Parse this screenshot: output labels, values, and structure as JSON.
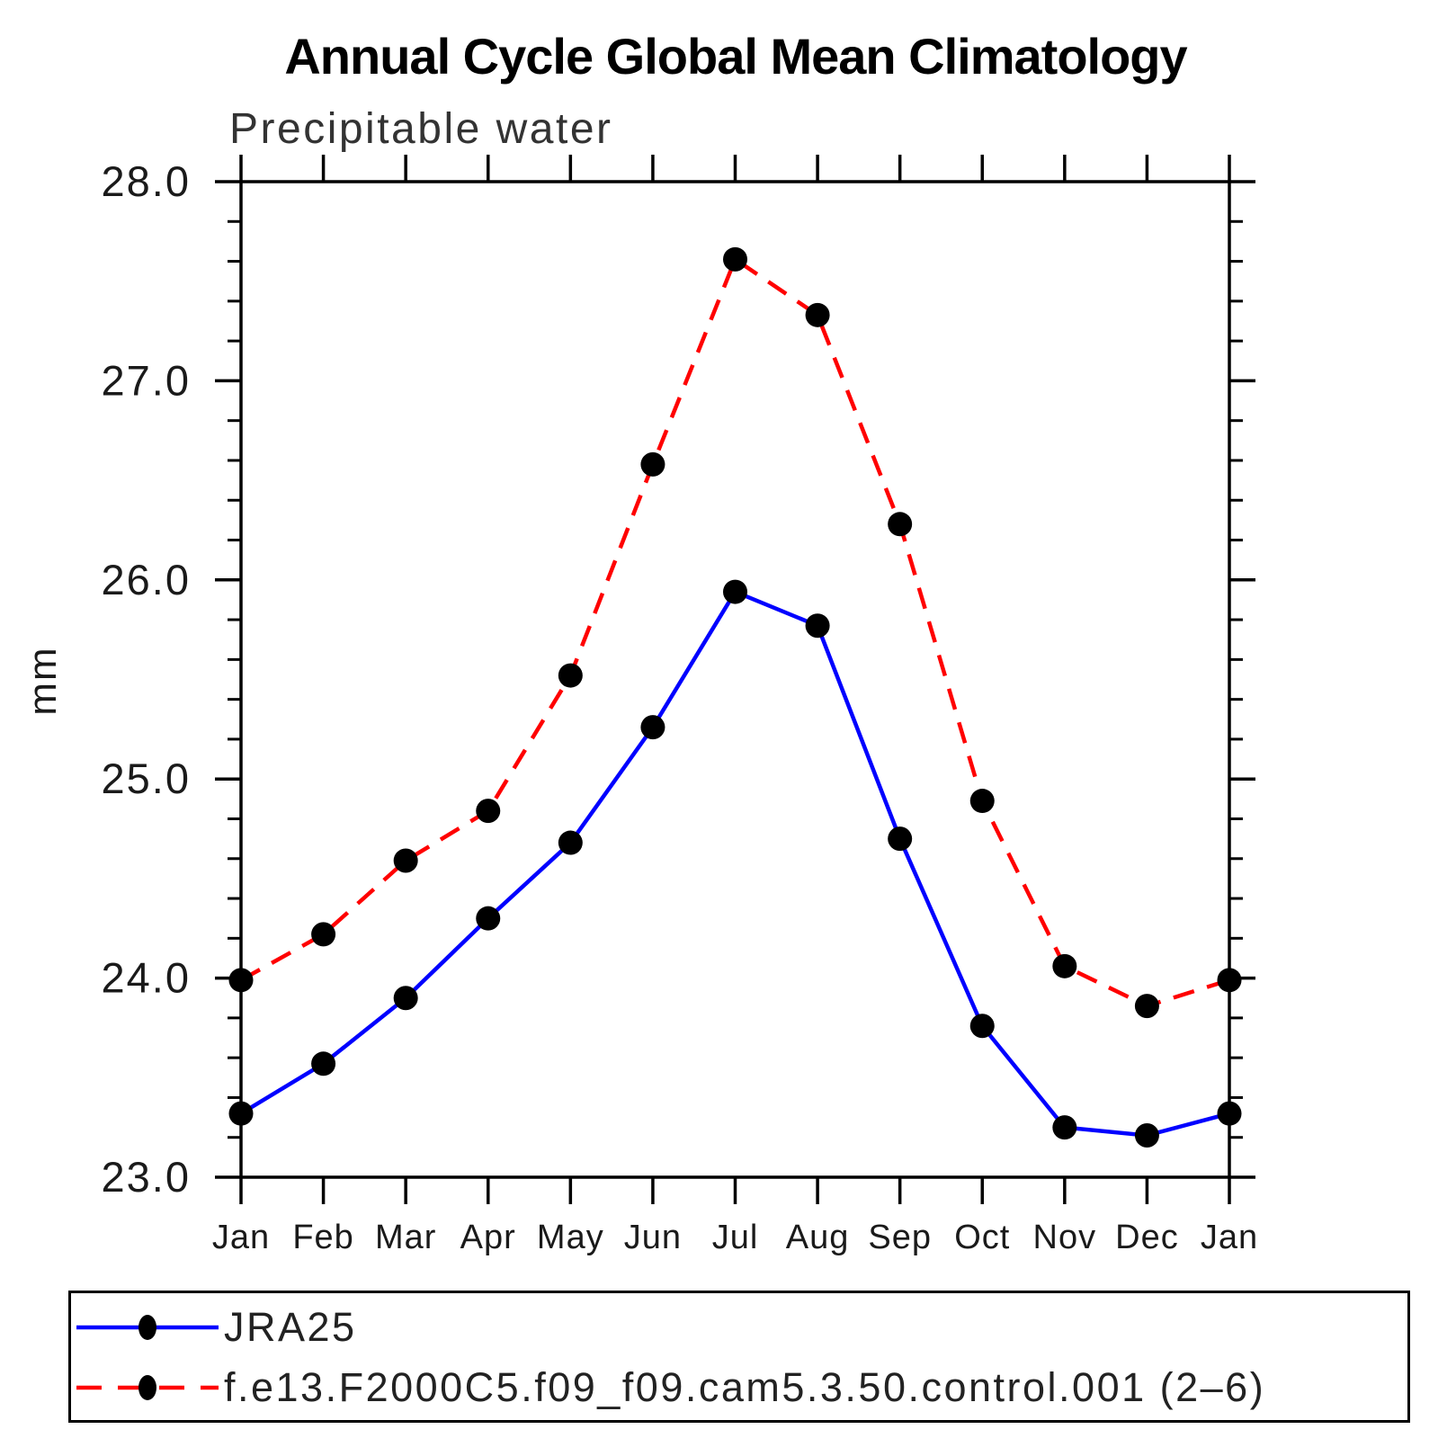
{
  "chart_data": {
    "type": "line",
    "title": "Annual Cycle Global Mean Climatology",
    "subtitle": "Precipitable water",
    "xlabel": "",
    "ylabel": "mm",
    "categories": [
      "Jan",
      "Feb",
      "Mar",
      "Apr",
      "May",
      "Jun",
      "Jul",
      "Aug",
      "Sep",
      "Oct",
      "Nov",
      "Dec",
      "Jan"
    ],
    "series": [
      {
        "name": "JRA25",
        "color": "#0000ff",
        "line_style": "solid",
        "marker": "filled-circle",
        "marker_color": "#000000",
        "values": [
          23.32,
          23.57,
          23.9,
          24.3,
          24.68,
          25.26,
          25.94,
          25.77,
          24.7,
          23.76,
          23.25,
          23.21,
          23.32
        ]
      },
      {
        "name": "f.e13.F2000C5.f09_f09.cam5.3.50.control.001 (2–6)",
        "color": "#ff0000",
        "line_style": "dashed",
        "marker": "filled-circle",
        "marker_color": "#000000",
        "values": [
          23.99,
          24.22,
          24.59,
          24.84,
          25.52,
          26.58,
          27.61,
          27.33,
          26.28,
          24.89,
          24.06,
          23.86,
          23.99
        ]
      }
    ],
    "ylim": [
      23.0,
      28.0
    ],
    "yticks": [
      23.0,
      24.0,
      25.0,
      26.0,
      27.0,
      28.0
    ],
    "ytick_labels": [
      "23.0",
      "24.0",
      "25.0",
      "26.0",
      "27.0",
      "28.0"
    ],
    "y_minor_step": 0.2,
    "grid": false,
    "legend_position": "bottom-left-box"
  }
}
